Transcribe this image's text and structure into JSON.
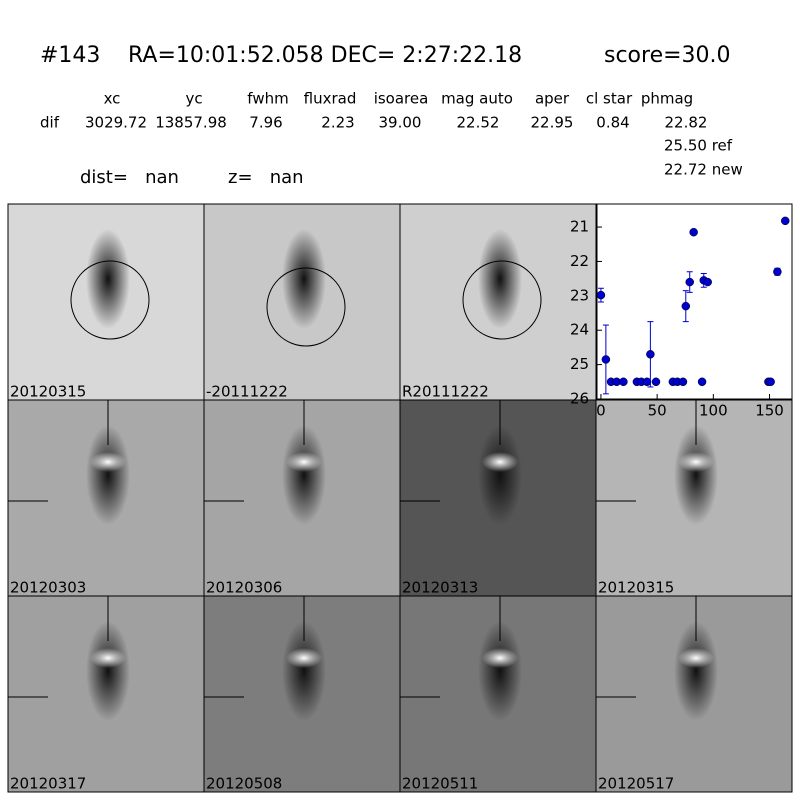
{
  "header": {
    "id": "#143",
    "coords": "RA=10:01:52.058 DEC= 2:27:22.18",
    "score": "score=30.0"
  },
  "table": {
    "columns": [
      "xc",
      "yc",
      "fwhm",
      "fluxrad",
      "isoarea",
      "mag auto",
      "aper",
      "cl star",
      "phmag"
    ],
    "row_label": "dif",
    "row": [
      "3029.72",
      "13857.98",
      "7.96",
      "2.23",
      "39.00",
      "22.52",
      "22.95",
      "0.84",
      "22.82"
    ],
    "ref": "25.50 ref",
    "new": "22.72 new"
  },
  "dist": "dist=   nan",
  "z": "z=   nan",
  "stamps": [
    "20120315",
    "-20111222",
    "R20111222",
    "20120303",
    "20120306",
    "20120313",
    "20120315",
    "20120317",
    "20120508",
    "20120511",
    "20120517"
  ],
  "chart_data": {
    "type": "scatter",
    "color": "#0000cc",
    "x": [
      0,
      4.4,
      9,
      14,
      20,
      32,
      36,
      41,
      44,
      49,
      64,
      68,
      73,
      75.5,
      79,
      82.5,
      90,
      91.5,
      95,
      149,
      151,
      157,
      164
    ],
    "values": [
      22.98,
      24.85,
      25.5,
      25.5,
      25.5,
      25.5,
      25.5,
      25.5,
      24.7,
      25.5,
      25.5,
      25.5,
      25.5,
      23.3,
      22.6,
      21.15,
      25.5,
      22.55,
      22.6,
      25.5,
      25.5,
      22.3,
      20.82
    ],
    "errors": [
      0.2,
      1.0,
      null,
      null,
      null,
      null,
      null,
      null,
      0.95,
      null,
      null,
      null,
      null,
      0.45,
      0.3,
      null,
      null,
      0.2,
      null,
      null,
      null,
      0.1,
      null
    ],
    "xlim": [
      -3.5,
      170
    ],
    "ylim": [
      26,
      20.33
    ],
    "xticks": [
      0,
      50,
      100,
      150
    ],
    "yticks": [
      21,
      22,
      23,
      24,
      25,
      26
    ]
  }
}
